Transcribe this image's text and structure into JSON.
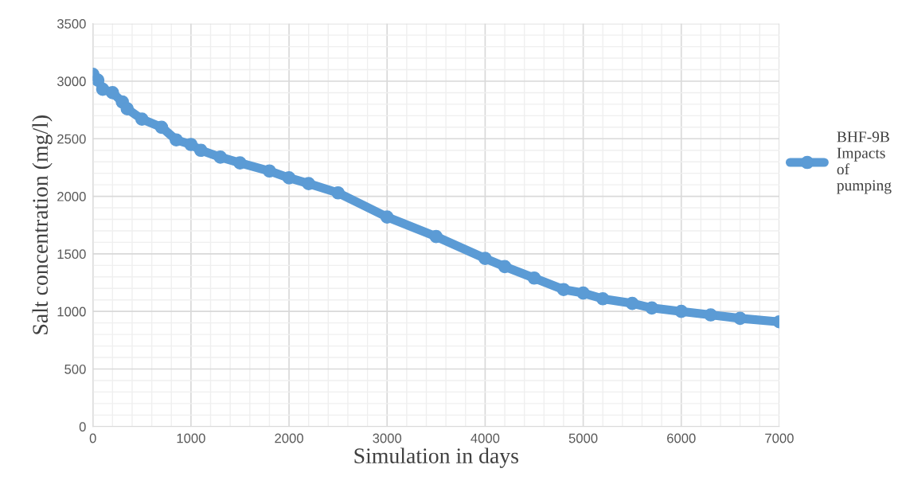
{
  "chart_data": {
    "type": "line",
    "xlabel": "Simulation in days",
    "ylabel": "Salt concentration (mg/l)",
    "xlim": [
      0,
      7000
    ],
    "xticks": [
      0,
      1000,
      2000,
      3000,
      4000,
      5000,
      6000,
      7000
    ],
    "ylim": [
      0,
      3500
    ],
    "yticks": [
      0,
      500,
      1000,
      1500,
      2000,
      2500,
      3000,
      3500
    ],
    "grid": true,
    "legend": "right",
    "marker": "circle",
    "line_style": "solid",
    "series": [
      {
        "name": "BHF-9B Impacts of pumping",
        "color": "#5b9bd5",
        "x": [
          0,
          50,
          100,
          200,
          300,
          350,
          500,
          700,
          850,
          1000,
          1100,
          1300,
          1500,
          1800,
          2000,
          2200,
          2500,
          3000,
          3500,
          4000,
          4200,
          4500,
          4800,
          5000,
          5200,
          5500,
          5700,
          6000,
          6300,
          6600,
          7000
        ],
        "values": [
          3060,
          3010,
          2930,
          2900,
          2820,
          2760,
          2670,
          2600,
          2490,
          2450,
          2400,
          2340,
          2290,
          2220,
          2160,
          2110,
          2030,
          1820,
          1650,
          1460,
          1390,
          1290,
          1190,
          1160,
          1110,
          1070,
          1030,
          1000,
          970,
          940,
          910
        ]
      }
    ]
  }
}
